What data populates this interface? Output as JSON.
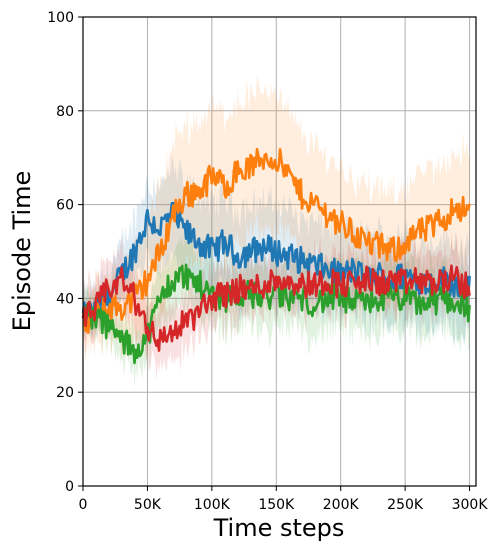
{
  "chart_data": {
    "type": "line",
    "title": "",
    "xlabel": "Time steps",
    "ylabel": "Episode Time",
    "xlim": [
      0,
      305000
    ],
    "ylim": [
      0,
      100
    ],
    "x_ticks": [
      0,
      50000,
      100000,
      150000,
      200000,
      250000,
      300000
    ],
    "x_tick_labels": [
      "0",
      "50K",
      "100K",
      "150K",
      "200K",
      "250K",
      "300K"
    ],
    "y_ticks": [
      0,
      20,
      40,
      60,
      80,
      100
    ],
    "y_tick_labels": [
      "0",
      "20",
      "40",
      "60",
      "80",
      "100"
    ],
    "grid": true,
    "legend": "none",
    "shaded_band": true,
    "series": [
      {
        "color": "#1f77b4",
        "x": [
          0,
          10000,
          20000,
          30000,
          40000,
          50000,
          60000,
          70000,
          80000,
          90000,
          100000,
          110000,
          120000,
          130000,
          140000,
          150000,
          160000,
          170000,
          180000,
          190000,
          200000,
          210000,
          220000,
          230000,
          240000,
          250000,
          260000,
          270000,
          280000,
          290000,
          300000
        ],
        "y": [
          36,
          37,
          40,
          45,
          50,
          57,
          55,
          58,
          54,
          52,
          50,
          52,
          49,
          50,
          51,
          50,
          49,
          48,
          47,
          46,
          45,
          46,
          44,
          45,
          44,
          45,
          44,
          43,
          44,
          43,
          42
        ],
        "band": [
          4,
          5,
          6,
          6,
          7,
          8,
          9,
          10,
          10,
          10,
          10,
          10,
          10,
          10,
          10,
          10,
          10,
          9,
          9,
          9,
          9,
          9,
          9,
          9,
          9,
          9,
          9,
          9,
          9,
          9,
          9
        ]
      },
      {
        "color": "#ff7f0e",
        "x": [
          0,
          10000,
          20000,
          30000,
          40000,
          50000,
          60000,
          70000,
          80000,
          90000,
          100000,
          110000,
          120000,
          130000,
          140000,
          150000,
          160000,
          170000,
          180000,
          190000,
          200000,
          210000,
          220000,
          230000,
          240000,
          250000,
          260000,
          270000,
          280000,
          290000,
          300000
        ],
        "y": [
          34,
          36,
          38,
          38,
          40,
          44,
          50,
          58,
          62,
          63,
          66,
          64,
          67,
          68,
          70,
          70,
          66,
          62,
          60,
          58,
          56,
          54,
          52,
          51,
          50,
          52,
          54,
          55,
          57,
          60,
          58
        ],
        "band": [
          5,
          6,
          7,
          8,
          10,
          12,
          14,
          15,
          15,
          15,
          15,
          15,
          15,
          15,
          15,
          14,
          13,
          13,
          12,
          12,
          12,
          12,
          12,
          12,
          12,
          12,
          12,
          12,
          12,
          12,
          12
        ]
      },
      {
        "color": "#2ca02c",
        "x": [
          0,
          10000,
          20000,
          30000,
          40000,
          50000,
          60000,
          70000,
          80000,
          90000,
          100000,
          110000,
          120000,
          130000,
          140000,
          150000,
          160000,
          170000,
          180000,
          190000,
          200000,
          210000,
          220000,
          230000,
          240000,
          250000,
          260000,
          270000,
          280000,
          290000,
          300000
        ],
        "y": [
          37,
          36,
          34,
          31,
          29,
          32,
          40,
          44,
          45,
          43,
          41,
          40,
          41,
          41,
          40,
          41,
          40,
          40,
          39,
          40,
          40,
          39,
          39,
          40,
          40,
          40,
          39,
          39,
          40,
          39,
          38
        ],
        "band": [
          4,
          4,
          4,
          4,
          4,
          5,
          6,
          7,
          7,
          7,
          7,
          7,
          7,
          7,
          7,
          7,
          7,
          7,
          7,
          7,
          7,
          7,
          7,
          7,
          7,
          7,
          7,
          7,
          7,
          7,
          7
        ]
      },
      {
        "color": "#d62728",
        "x": [
          0,
          10000,
          20000,
          30000,
          40000,
          50000,
          60000,
          70000,
          80000,
          90000,
          100000,
          110000,
          120000,
          130000,
          140000,
          150000,
          160000,
          170000,
          180000,
          190000,
          200000,
          210000,
          220000,
          230000,
          240000,
          250000,
          260000,
          270000,
          280000,
          290000,
          300000
        ],
        "y": [
          35,
          38,
          42,
          44,
          40,
          34,
          31,
          33,
          35,
          37,
          40,
          41,
          42,
          42,
          43,
          44,
          44,
          43,
          43,
          44,
          43,
          43,
          44,
          43,
          44,
          43,
          44,
          43,
          44,
          44,
          42
        ],
        "band": [
          5,
          5,
          6,
          6,
          6,
          6,
          6,
          6,
          6,
          6,
          6,
          6,
          6,
          6,
          6,
          6,
          6,
          6,
          6,
          6,
          6,
          6,
          6,
          6,
          6,
          6,
          6,
          6,
          6,
          6,
          6
        ]
      }
    ]
  }
}
